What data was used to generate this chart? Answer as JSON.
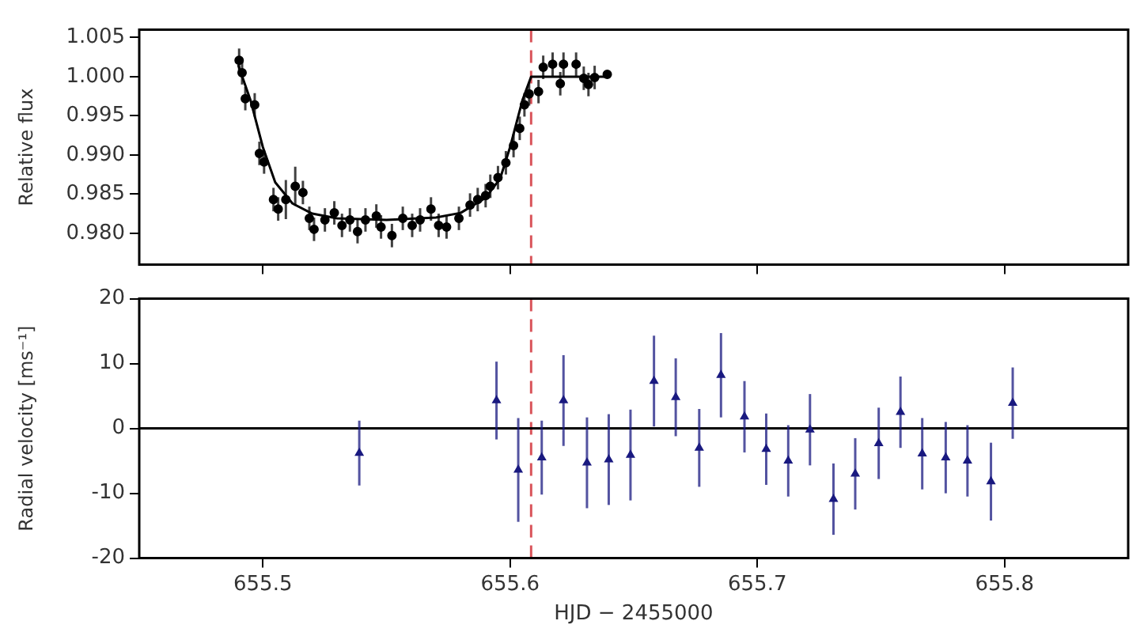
{
  "chart_data": [
    {
      "type": "scatter",
      "ylabel": "Relative flux",
      "xlim": [
        655.45,
        655.85
      ],
      "xticks": [
        655.5,
        655.6,
        655.7,
        655.8
      ],
      "ylim": [
        0.976,
        1.006
      ],
      "yticks": [
        {
          "value": 0.98,
          "label": "0.980"
        },
        0.985,
        {
          "value": 0.99,
          "label": "0.990"
        },
        0.995,
        {
          "value": 1,
          "label": "1.000"
        },
        1.005
      ],
      "tick_labels": "y",
      "grid": false,
      "legend": false,
      "series": [
        {
          "type": "scatter",
          "color": "#000000",
          "marker": "circle",
          "x": [
            655.4904,
            655.4916,
            655.4929,
            655.4967,
            655.4986,
            655.5005,
            655.5043,
            655.5062,
            655.5093,
            655.5131,
            655.5162,
            655.5188,
            655.5207,
            655.5251,
            655.5289,
            655.532,
            655.5352,
            655.5383,
            655.5415,
            655.5459,
            655.5478,
            655.5522,
            655.5566,
            655.5604,
            655.5636,
            655.568,
            655.5711,
            655.5743,
            655.5793,
            655.5838,
            655.5869,
            655.5901,
            655.592,
            655.5951,
            655.5983,
            655.6014,
            655.6039,
            655.6058,
            655.6077,
            655.6115,
            655.6134,
            655.6172,
            655.6203,
            655.6216,
            655.6267,
            655.6298,
            655.6317,
            655.6342,
            655.6393
          ],
          "values": [
            1.0021,
            1.0005,
            0.9972,
            0.9964,
            0.9902,
            0.9891,
            0.9843,
            0.9831,
            0.9843,
            0.986,
            0.9852,
            0.9819,
            0.9805,
            0.9817,
            0.9826,
            0.981,
            0.9817,
            0.9802,
            0.9817,
            0.9822,
            0.9808,
            0.9797,
            0.9819,
            0.981,
            0.9817,
            0.9831,
            0.981,
            0.9808,
            0.9819,
            0.9836,
            0.9843,
            0.9848,
            0.986,
            0.9871,
            0.989,
            0.9912,
            0.9934,
            0.9964,
            0.9978,
            0.9981,
            1.0012,
            1.0016,
            0.9991,
            1.0016,
            1.0016,
            0.9998,
            0.999,
            0.9999,
            1.0003
          ],
          "errors": [
            0.0015,
            0.0015,
            0.0015,
            0.0015,
            0.0015,
            0.0015,
            0.0015,
            0.0015,
            0.0025,
            0.0025,
            0.0015,
            0.0015,
            0.0015,
            0.0015,
            0.0015,
            0.0015,
            0.0015,
            0.0015,
            0.0015,
            0.0015,
            0.0015,
            0.0015,
            0.0015,
            0.0015,
            0.0015,
            0.0015,
            0.0015,
            0.0015,
            0.0015,
            0.0015,
            0.0015,
            0.0015,
            0.0015,
            0.0015,
            0.0015,
            0.0015,
            0.0015,
            0.0015,
            0.0015,
            0.0015,
            0.0015,
            0.0015,
            0.0015,
            0.0015,
            0.0015,
            0.0015,
            0.0015,
            0.0015,
            0.0005
          ]
        },
        {
          "type": "line",
          "color": "#000000",
          "marker": "none",
          "line_style": "solid",
          "x": [
            655.49,
            655.495,
            655.5,
            655.505,
            655.512,
            655.52,
            655.53,
            655.55,
            655.57,
            655.58,
            655.59,
            655.596,
            655.6,
            655.605,
            655.6085,
            655.64
          ],
          "values": [
            1.0015,
            0.997,
            0.991,
            0.9865,
            0.9838,
            0.9825,
            0.9819,
            0.9817,
            0.982,
            0.9826,
            0.9845,
            0.987,
            0.991,
            0.997,
            1.0,
            1.0
          ]
        }
      ],
      "ref_lines": [
        {
          "axis": "x",
          "value": 655.6085,
          "color": "#d9545a",
          "line_style": "dashed"
        }
      ]
    },
    {
      "type": "scatter",
      "xlabel": "HJD − 2455000",
      "ylabel": "Radial velocity [ms⁻¹]",
      "xlim": [
        655.45,
        655.85
      ],
      "xticks": [
        655.5,
        655.6,
        655.7,
        655.8
      ],
      "ylim": [
        -20,
        20
      ],
      "yticks": [
        -20,
        -10,
        0,
        10,
        20
      ],
      "grid": false,
      "legend": false,
      "series": [
        {
          "type": "scatter",
          "color": "#1a1a80",
          "marker": "triangle",
          "x": [
            655.539,
            655.5945,
            655.6033,
            655.6128,
            655.6216,
            655.6311,
            655.6399,
            655.6487,
            655.6582,
            655.667,
            655.6765,
            655.6853,
            655.6948,
            655.7036,
            655.7125,
            655.7213,
            655.7308,
            655.7396,
            655.7491,
            655.7579,
            655.7667,
            655.7762,
            655.785,
            655.7945,
            655.8033
          ],
          "values": [
            -3.8,
            4.3,
            -6.4,
            -4.5,
            4.3,
            -5.3,
            -4.8,
            -4.1,
            7.3,
            4.8,
            -3.0,
            8.2,
            1.8,
            -3.2,
            -5.0,
            -0.2,
            -10.9,
            -7.0,
            -2.3,
            2.5,
            -3.9,
            -4.5,
            -5.0,
            -8.2,
            3.9
          ],
          "errors": [
            5,
            6,
            8,
            5.7,
            7,
            7,
            7,
            7,
            7,
            6,
            6,
            6.5,
            5.5,
            5.5,
            5.5,
            5.5,
            5.5,
            5.5,
            5.5,
            5.5,
            5.5,
            5.5,
            5.5,
            6,
            5.5
          ]
        }
      ],
      "ref_lines": [
        {
          "axis": "x",
          "value": 655.6085,
          "color": "#d9545a",
          "line_style": "dashed"
        },
        {
          "axis": "y",
          "value": 0,
          "color": "#000000",
          "line_style": "solid"
        }
      ]
    }
  ]
}
